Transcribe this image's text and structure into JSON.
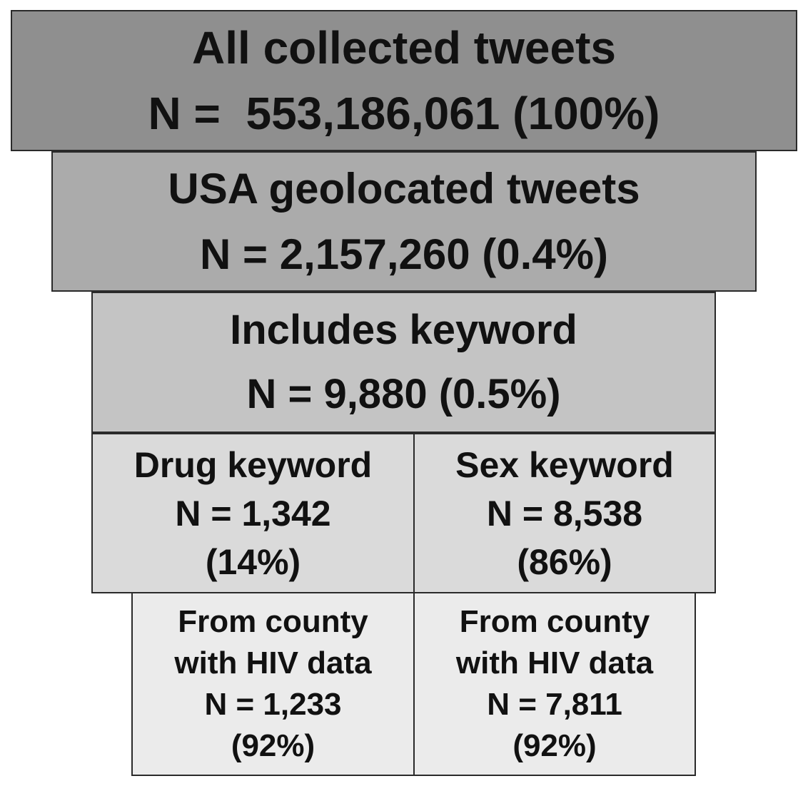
{
  "all_tweets": {
    "label": "All collected tweets",
    "count": "N =  553,186,061 (100%)"
  },
  "usa_tweets": {
    "label": "USA geolocated tweets",
    "count": "N = 2,157,260 (0.4%)"
  },
  "keyword_tweets": {
    "label": "Includes keyword",
    "count": "N = 9,880 (0.5%)"
  },
  "drug_keyword": {
    "label": "Drug keyword",
    "count": "N = 1,342",
    "percent": "(14%)"
  },
  "sex_keyword": {
    "label": "Sex keyword",
    "count": "N = 8,538",
    "percent": "(86%)"
  },
  "drug_hiv": {
    "line1": "From county",
    "line2": "with HIV data",
    "count": "N = 1,233",
    "percent": "(92%)"
  },
  "sex_hiv": {
    "line1": "From county",
    "line2": "with HIV data",
    "count": "N = 7,811",
    "percent": "(92%)"
  }
}
